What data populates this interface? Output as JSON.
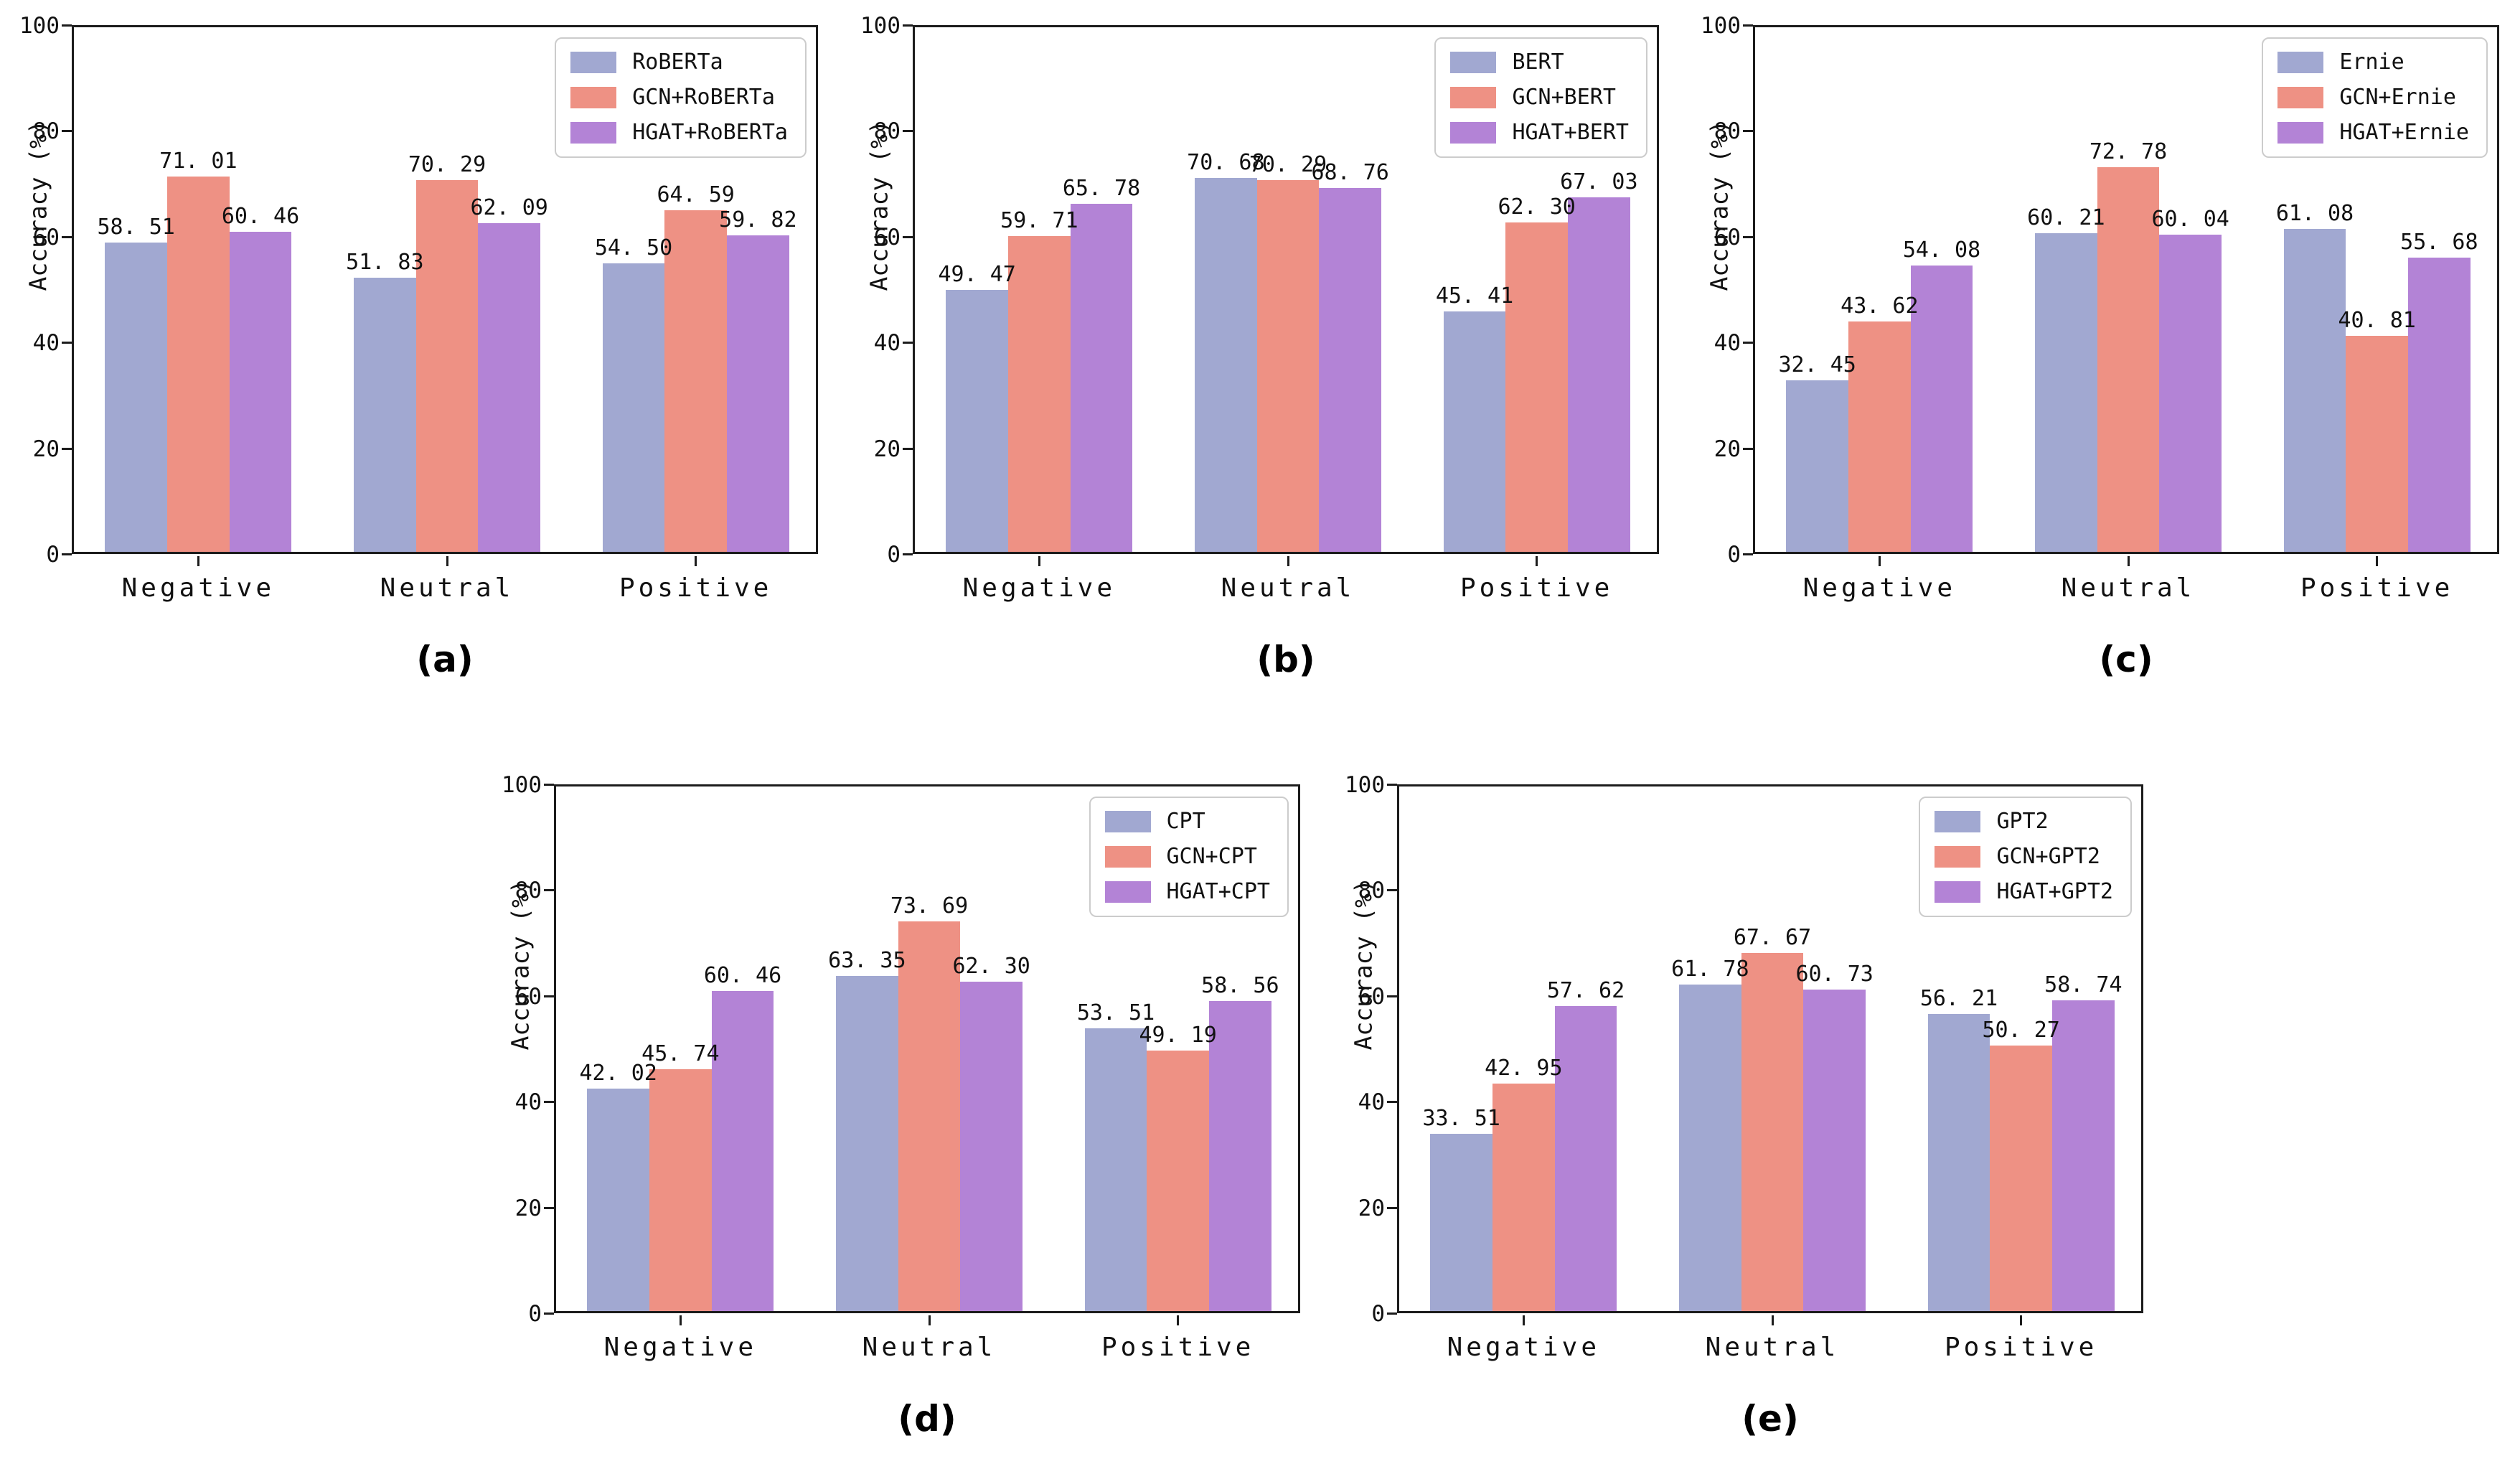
{
  "figure": {
    "background": "#ffffff",
    "series_colors": [
      "#a1a8d1",
      "#ee9184",
      "#b383d6"
    ],
    "axis_color": "#1c1c1c",
    "text_color": "#111111"
  },
  "chart_data": [
    {
      "type": "bar",
      "caption": "(a)",
      "categories": [
        "Negative",
        "Neutral",
        "Positive"
      ],
      "series": [
        {
          "name": "RoBERTa",
          "values": [
            58.51,
            51.83,
            54.5
          ]
        },
        {
          "name": "GCN+RoBERTa",
          "values": [
            71.01,
            70.29,
            64.59
          ]
        },
        {
          "name": "HGAT+RoBERTa",
          "values": [
            60.46,
            62.09,
            59.82
          ]
        }
      ],
      "title": "",
      "xlabel": "",
      "ylabel": "Accuracy (%)",
      "ylim": [
        0,
        100
      ],
      "yticks": [
        0,
        20,
        40,
        60,
        80,
        100
      ],
      "legend_position": "upper-right",
      "grid": false
    },
    {
      "type": "bar",
      "caption": "(b)",
      "categories": [
        "Negative",
        "Neutral",
        "Positive"
      ],
      "series": [
        {
          "name": "BERT",
          "values": [
            49.47,
            70.68,
            45.41
          ]
        },
        {
          "name": "GCN+BERT",
          "values": [
            59.71,
            70.29,
            62.3
          ]
        },
        {
          "name": "HGAT+BERT",
          "values": [
            65.78,
            68.76,
            67.03
          ]
        }
      ],
      "title": "",
      "xlabel": "",
      "ylabel": "Accuracy (%)",
      "ylim": [
        0,
        100
      ],
      "yticks": [
        0,
        20,
        40,
        60,
        80,
        100
      ],
      "legend_position": "upper-right",
      "grid": false
    },
    {
      "type": "bar",
      "caption": "(c)",
      "categories": [
        "Negative",
        "Neutral",
        "Positive"
      ],
      "series": [
        {
          "name": "Ernie",
          "values": [
            32.45,
            60.21,
            61.08
          ]
        },
        {
          "name": "GCN+Ernie",
          "values": [
            43.62,
            72.78,
            40.81
          ]
        },
        {
          "name": "HGAT+Ernie",
          "values": [
            54.08,
            60.04,
            55.68
          ]
        }
      ],
      "title": "",
      "xlabel": "",
      "ylabel": "Accuracy (%)",
      "ylim": [
        0,
        100
      ],
      "yticks": [
        0,
        20,
        40,
        60,
        80,
        100
      ],
      "legend_position": "upper-right",
      "grid": false
    },
    {
      "type": "bar",
      "caption": "(d)",
      "categories": [
        "Negative",
        "Neutral",
        "Positive"
      ],
      "series": [
        {
          "name": "CPT",
          "values": [
            42.02,
            63.35,
            53.51
          ]
        },
        {
          "name": "GCN+CPT",
          "values": [
            45.74,
            73.69,
            49.19
          ]
        },
        {
          "name": "HGAT+CPT",
          "values": [
            60.46,
            62.3,
            58.56
          ]
        }
      ],
      "title": "",
      "xlabel": "",
      "ylabel": "Accuracy (%)",
      "ylim": [
        0,
        100
      ],
      "yticks": [
        0,
        20,
        40,
        60,
        80,
        100
      ],
      "legend_position": "upper-right",
      "grid": false
    },
    {
      "type": "bar",
      "caption": "(e)",
      "categories": [
        "Negative",
        "Neutral",
        "Positive"
      ],
      "series": [
        {
          "name": "GPT2",
          "values": [
            33.51,
            61.78,
            56.21
          ]
        },
        {
          "name": "GCN+GPT2",
          "values": [
            42.95,
            67.67,
            50.27
          ]
        },
        {
          "name": "HGAT+GPT2",
          "values": [
            57.62,
            60.73,
            58.74
          ]
        }
      ],
      "title": "",
      "xlabel": "",
      "ylabel": "Accuracy (%)",
      "ylim": [
        0,
        100
      ],
      "yticks": [
        0,
        20,
        40,
        60,
        80,
        100
      ],
      "legend_position": "upper-right",
      "grid": false
    }
  ]
}
